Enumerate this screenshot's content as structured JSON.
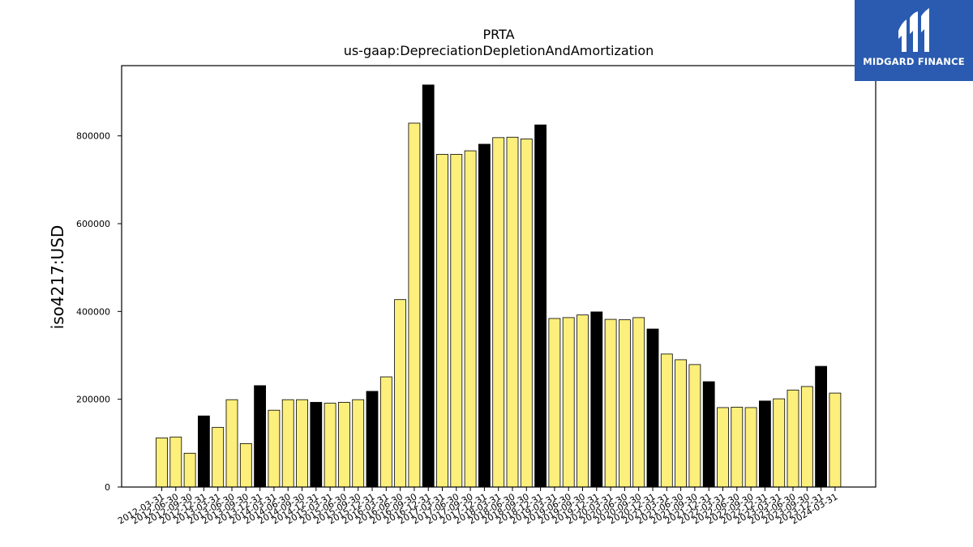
{
  "brand": {
    "name": "MIDGARD FINANCE",
    "bg_color": "#2a5bb0"
  },
  "chart_data": {
    "type": "bar",
    "title": "PRTA",
    "subtitle": "us-gaap:DepreciationDepletionAndAmortization",
    "xlabel": "",
    "ylabel": "iso4217:USD",
    "ylim": [
      0,
      960000
    ],
    "yticks": [
      0,
      200000,
      400000,
      600000,
      800000
    ],
    "colors": {
      "quarter": "#fdef7b",
      "year_end": "#000000",
      "edge": "#000000"
    },
    "categories": [
      "2012-03-31",
      "2012-06-30",
      "2012-09-30",
      "2012-12-31",
      "2013-03-31",
      "2013-06-30",
      "2013-09-30",
      "2013-12-31",
      "2014-03-31",
      "2014-06-30",
      "2014-09-30",
      "2014-12-31",
      "2015-03-31",
      "2015-06-30",
      "2015-09-30",
      "2015-12-31",
      "2016-03-31",
      "2016-06-30",
      "2016-09-30",
      "2016-12-31",
      "2017-03-31",
      "2017-06-30",
      "2017-09-30",
      "2017-12-31",
      "2018-03-31",
      "2018-06-30",
      "2018-09-30",
      "2018-12-31",
      "2019-03-31",
      "2019-06-30",
      "2019-09-30",
      "2019-12-31",
      "2020-03-31",
      "2020-06-30",
      "2020-09-30",
      "2020-12-31",
      "2021-03-31",
      "2021-06-30",
      "2021-09-30",
      "2021-12-31",
      "2022-03-31",
      "2022-06-30",
      "2022-09-30",
      "2022-12-31",
      "2023-03-31",
      "2023-06-30",
      "2023-09-30",
      "2023-12-31",
      "2024-03-31"
    ],
    "values": [
      112000,
      114000,
      77000,
      162000,
      136000,
      199000,
      99000,
      231000,
      175000,
      199000,
      199000,
      193000,
      191000,
      193000,
      199000,
      218000,
      251000,
      427000,
      829000,
      916000,
      758000,
      758000,
      766000,
      781000,
      796000,
      797000,
      793000,
      825000,
      384000,
      386000,
      392000,
      399000,
      382000,
      381000,
      386000,
      360000,
      303000,
      290000,
      279000,
      240000,
      181000,
      182000,
      181000,
      196000,
      201000,
      221000,
      229000,
      275000,
      214000
    ]
  }
}
